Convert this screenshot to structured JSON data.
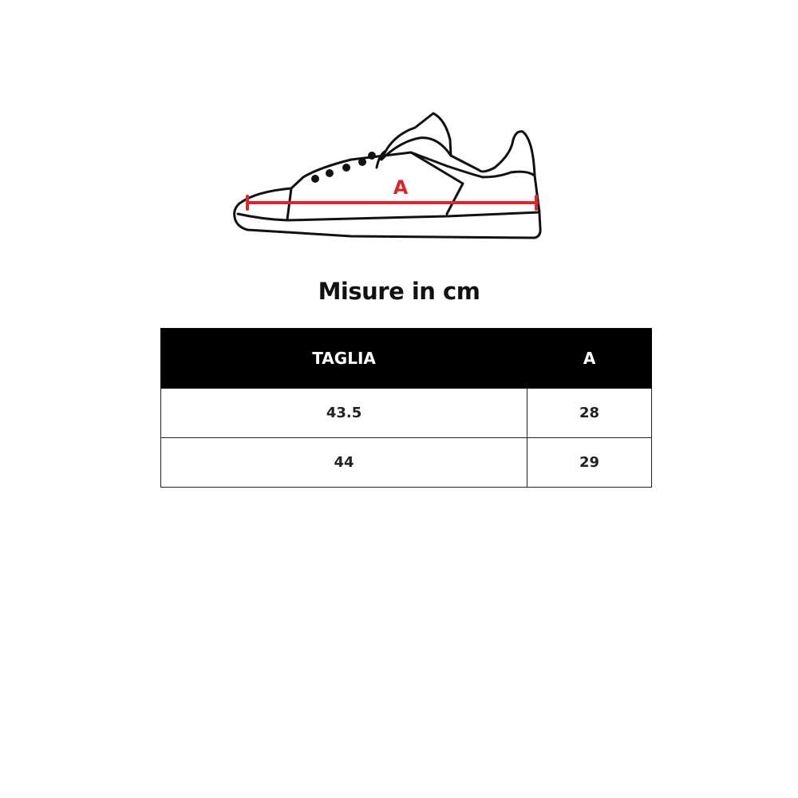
{
  "diagram": {
    "label": "A",
    "accent_color": "#d9262c"
  },
  "title": "Misure in cm",
  "table": {
    "headers": [
      "TAGLIA",
      "A"
    ],
    "rows": [
      [
        "43.5",
        "28"
      ],
      [
        "44",
        "29"
      ]
    ]
  }
}
